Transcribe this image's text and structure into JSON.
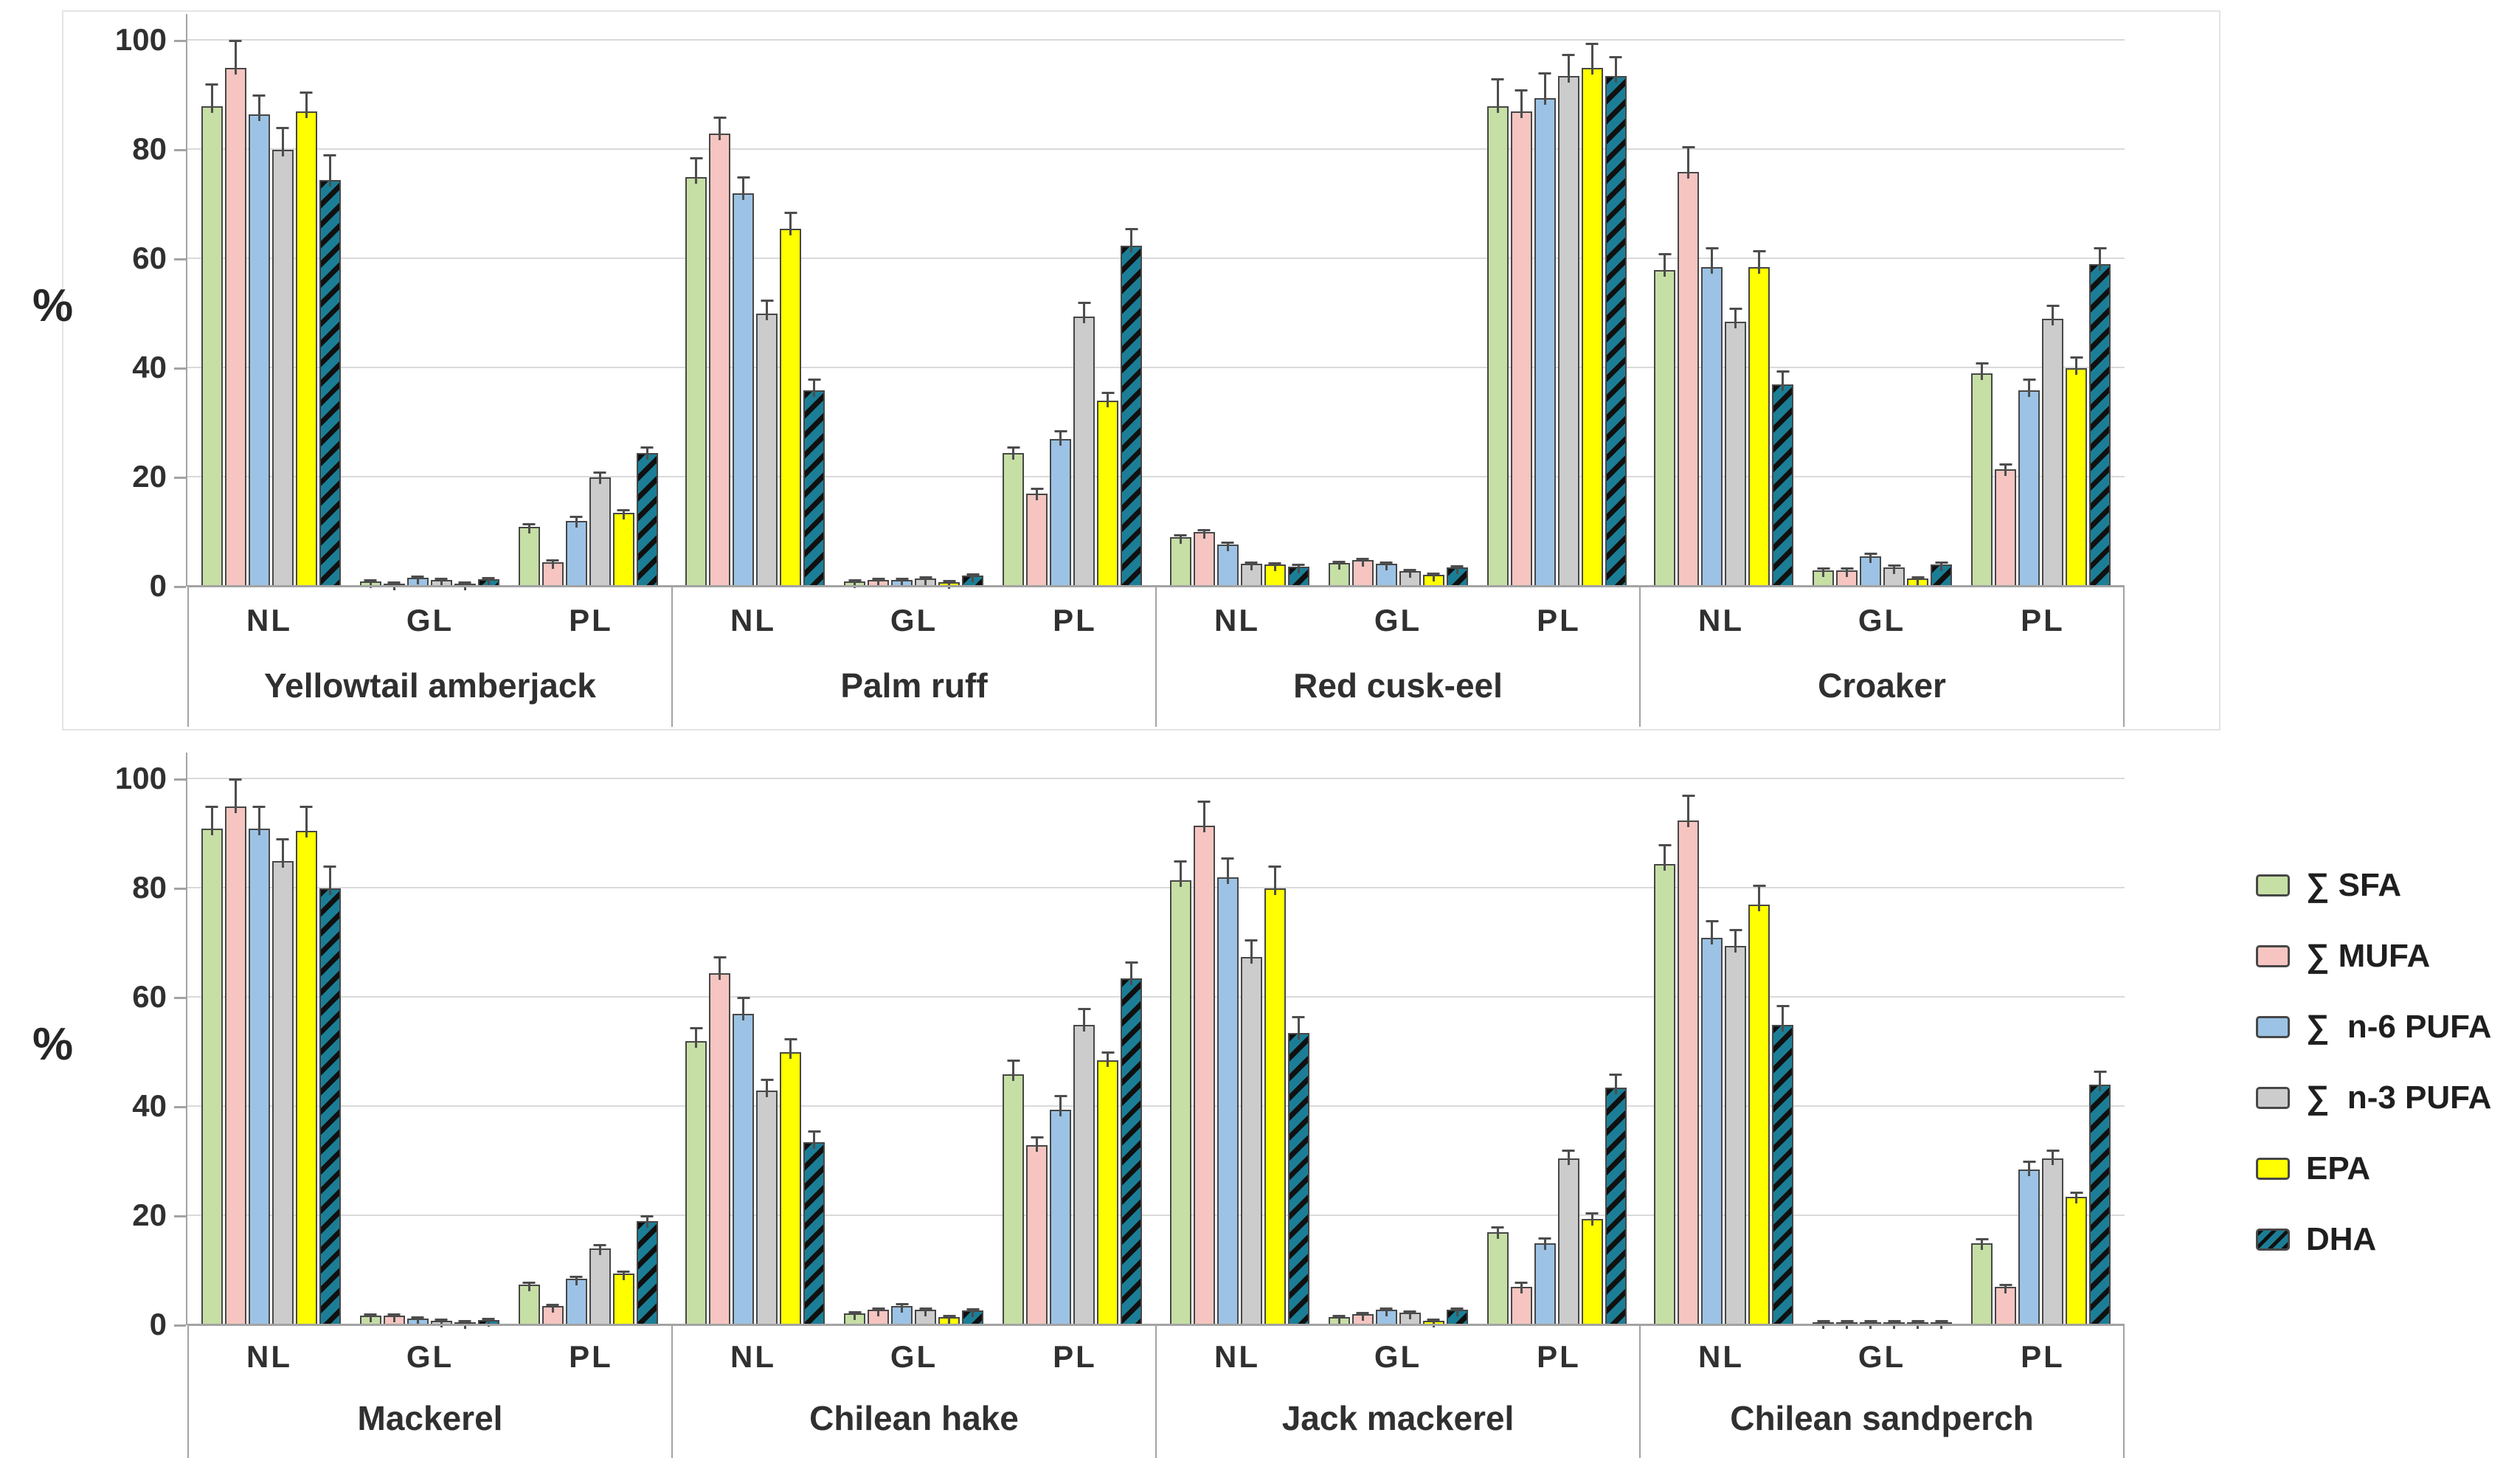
{
  "chart_data": {
    "type": "bar",
    "title": "",
    "ylabel": "%",
    "ylim": [
      0,
      100
    ],
    "yticks": [
      100,
      80,
      60,
      40,
      20,
      0
    ],
    "grid": true,
    "legend_position": "right-middle",
    "lipid_class_labels": [
      "NL",
      "GL",
      "PL"
    ],
    "series": [
      {
        "key": "sfa",
        "name": "Σ SFA",
        "legend": "∑ SFA",
        "color": "#c6dfa4",
        "hatch": false
      },
      {
        "key": "mufa",
        "name": "Σ MUFA",
        "legend": "∑ MUFA",
        "color": "#f6c5c1",
        "hatch": false
      },
      {
        "key": "n6pufa",
        "name": "Σ n-6 PUFA",
        "legend": "∑  n-6 PUFA",
        "color": "#9cc3e5",
        "hatch": false
      },
      {
        "key": "n3pufa",
        "name": "Σ n-3 PUFA",
        "legend": "∑  n-3 PUFA",
        "color": "#cccccc",
        "hatch": false
      },
      {
        "key": "epa",
        "name": "EPA",
        "legend": "EPA",
        "color": "#ffff00",
        "hatch": false
      },
      {
        "key": "dha",
        "name": "DHA",
        "legend": "DHA",
        "color": "#1b7e96",
        "hatch": true
      }
    ],
    "panels": [
      {
        "name": "top",
        "species": [
          {
            "name": "Yellowtail amberjack",
            "classes": [
              {
                "label": "NL",
                "values": [
                  88,
                  95,
                  86.5,
                  80,
                  87,
                  74.5
                ],
                "errors": [
                  4,
                  5,
                  3.5,
                  4,
                  3.5,
                  4.5
                ]
              },
              {
                "label": "GL",
                "values": [
                  1.0,
                  0.6,
                  1.6,
                  1.2,
                  0.2,
                  1.3
                ],
                "errors": [
                  0.2,
                  0.2,
                  0.3,
                  0.2,
                  0.1,
                  0.3
                ]
              },
              {
                "label": "PL",
                "values": [
                  11,
                  4.5,
                  12,
                  20,
                  13.5,
                  24.5
                ],
                "errors": [
                  0.5,
                  0.4,
                  0.8,
                  1.0,
                  0.6,
                  1.0
                ]
              }
            ]
          },
          {
            "name": "Palm ruff",
            "classes": [
              {
                "label": "NL",
                "values": [
                  75,
                  83,
                  72,
                  50,
                  65.5,
                  36
                ],
                "errors": [
                  3.5,
                  3,
                  3,
                  2.5,
                  3,
                  2
                ]
              },
              {
                "label": "GL",
                "values": [
                  1.0,
                  1.2,
                  1.2,
                  1.5,
                  0.8,
                  2.0
                ],
                "errors": [
                  0.2,
                  0.2,
                  0.2,
                  0.3,
                  0.2,
                  0.3
                ]
              },
              {
                "label": "PL",
                "values": [
                  24.5,
                  17,
                  27,
                  49.5,
                  34,
                  62.5
                ],
                "errors": [
                  1,
                  1,
                  1.5,
                  2.5,
                  1.5,
                  3
                ]
              }
            ]
          },
          {
            "name": "Red cusk-eel",
            "classes": [
              {
                "label": "NL",
                "values": [
                  9,
                  10,
                  7.7,
                  4.2,
                  4,
                  3.7
                ],
                "errors": [
                  0.4,
                  0.4,
                  0.4,
                  0.3,
                  0.3,
                  0.3
                ]
              },
              {
                "label": "GL",
                "values": [
                  4.3,
                  4.8,
                  4.2,
                  2.9,
                  2.2,
                  3.5
                ],
                "errors": [
                  0.3,
                  0.3,
                  0.3,
                  0.2,
                  0.2,
                  0.2
                ]
              },
              {
                "label": "PL",
                "values": [
                  88,
                  87,
                  89.5,
                  93.5,
                  95,
                  93.5
                ],
                "errors": [
                  5,
                  4,
                  4.5,
                  4,
                  4.5,
                  3.5
                ]
              }
            ]
          },
          {
            "name": "Croaker",
            "classes": [
              {
                "label": "NL",
                "values": [
                  58,
                  76,
                  58.5,
                  48.5,
                  58.5,
                  37
                ],
                "errors": [
                  3,
                  4.5,
                  3.5,
                  2.5,
                  3,
                  2.5
                ]
              },
              {
                "label": "GL",
                "values": [
                  3,
                  3,
                  5.5,
                  3.5,
                  1.5,
                  4
                ],
                "errors": [
                  0.4,
                  0.4,
                  0.6,
                  0.4,
                  0.3,
                  0.4
                ]
              },
              {
                "label": "PL",
                "values": [
                  39,
                  21.5,
                  36,
                  49,
                  40,
                  59
                ],
                "errors": [
                  2,
                  1,
                  2,
                  2.5,
                  2,
                  3
                ]
              }
            ]
          }
        ]
      },
      {
        "name": "bottom",
        "species": [
          {
            "name": "Mackerel",
            "classes": [
              {
                "label": "NL",
                "values": [
                  91,
                  95,
                  91,
                  85,
                  90.5,
                  80
                ],
                "errors": [
                  4,
                  5,
                  4,
                  4,
                  4.5,
                  4
                ]
              },
              {
                "label": "GL",
                "values": [
                  1.7,
                  1.7,
                  1.2,
                  0.8,
                  0.3,
                  0.9
                ],
                "errors": [
                  0.2,
                  0.2,
                  0.2,
                  0.1,
                  0.1,
                  0.1
                ]
              },
              {
                "label": "PL",
                "values": [
                  7.5,
                  3.5,
                  8.5,
                  14,
                  9.5,
                  19
                ],
                "errors": [
                  0.4,
                  0.3,
                  0.4,
                  0.7,
                  0.4,
                  1.0
                ]
              }
            ]
          },
          {
            "name": "Chilean hake",
            "classes": [
              {
                "label": "NL",
                "values": [
                  52,
                  64.5,
                  57,
                  43,
                  50,
                  33.5
                ],
                "errors": [
                  2.5,
                  3,
                  3,
                  2,
                  2.5,
                  2
                ]
              },
              {
                "label": "GL",
                "values": [
                  2.2,
                  2.8,
                  3.5,
                  2.8,
                  1.5,
                  2.7
                ],
                "errors": [
                  0.3,
                  0.3,
                  0.4,
                  0.3,
                  0.2,
                  0.3
                ]
              },
              {
                "label": "PL",
                "values": [
                  46,
                  33,
                  39.5,
                  55,
                  48.5,
                  63.5
                ],
                "errors": [
                  2.5,
                  1.5,
                  2.5,
                  3,
                  1.5,
                  3
                ]
              }
            ]
          },
          {
            "name": "Jack mackerel",
            "classes": [
              {
                "label": "NL",
                "values": [
                  81.5,
                  91.5,
                  82,
                  67.5,
                  80,
                  53.5
                ],
                "errors": [
                  3.5,
                  4.5,
                  3.5,
                  3,
                  4,
                  3
                ]
              },
              {
                "label": "GL",
                "values": [
                  1.5,
                  2,
                  2.8,
                  2.3,
                  0.8,
                  2.8
                ],
                "errors": [
                  0.2,
                  0.2,
                  0.3,
                  0.2,
                  0.1,
                  0.3
                ]
              },
              {
                "label": "PL",
                "values": [
                  17,
                  7,
                  15,
                  30.5,
                  19.5,
                  43.5
                ],
                "errors": [
                  1,
                  0.8,
                  1,
                  1.5,
                  1,
                  2.5
                ]
              }
            ]
          },
          {
            "name": "Chilean sandperch",
            "classes": [
              {
                "label": "NL",
                "values": [
                  84.5,
                  92.5,
                  71,
                  69.5,
                  77,
                  55
                ],
                "errors": [
                  3.5,
                  4.5,
                  3,
                  3,
                  3.5,
                  3.5
                ]
              },
              {
                "label": "GL",
                "values": [
                  0.4,
                  0.3,
                  0.5,
                  0.4,
                  0.2,
                  0.6
                ],
                "errors": [
                  0.1,
                  0.1,
                  0.1,
                  0.1,
                  0.1,
                  0.1
                ]
              },
              {
                "label": "PL",
                "values": [
                  15,
                  7,
                  28.5,
                  30.5,
                  23.5,
                  44
                ],
                "errors": [
                  0.8,
                  0.5,
                  1.5,
                  1.5,
                  0.8,
                  2.5
                ]
              }
            ]
          }
        ]
      }
    ]
  }
}
